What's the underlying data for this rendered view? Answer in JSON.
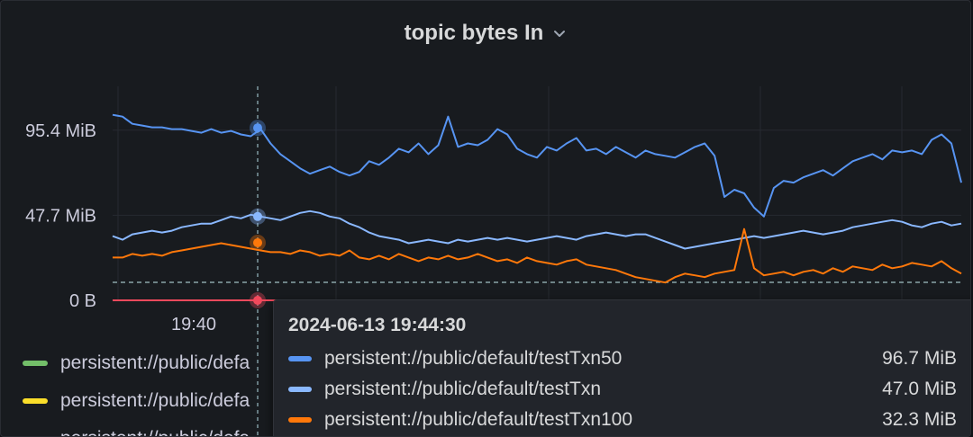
{
  "panel": {
    "title": "topic bytes In"
  },
  "chart_data": {
    "type": "line",
    "title": "topic bytes In",
    "y_ticks": [
      "95.4 MiB",
      "47.7 MiB",
      "0 B"
    ],
    "x_ticks": [
      "19:40"
    ],
    "ylim": [
      0,
      120
    ],
    "grid": true,
    "series": [
      {
        "name": "persistent://public/default/testTxn50",
        "color": "#5794f2",
        "values": [
          104,
          103,
          99,
          98,
          97,
          97,
          96,
          96,
          95,
          94,
          96,
          94,
          95,
          93,
          92,
          96,
          88,
          82,
          78,
          74,
          71,
          73,
          75,
          72,
          70,
          72,
          78,
          76,
          80,
          85,
          83,
          88,
          82,
          87,
          103,
          86,
          88,
          87,
          90,
          96,
          93,
          85,
          82,
          80,
          86,
          84,
          88,
          91,
          84,
          85,
          82,
          86,
          83,
          80,
          84,
          82,
          81,
          80,
          83,
          86,
          88,
          81,
          58,
          62,
          60,
          52,
          47,
          63,
          67,
          66,
          69,
          71,
          73,
          70,
          74,
          78,
          80,
          82,
          79,
          84,
          83,
          84,
          82,
          90,
          93,
          88,
          66
        ]
      },
      {
        "name": "persistent://public/default/testTxn",
        "color": "#8ab8ff",
        "values": [
          36,
          34,
          37,
          38,
          39,
          38,
          39,
          41,
          42,
          43,
          43,
          45,
          47,
          46,
          48,
          47,
          46,
          45,
          47,
          49,
          50,
          49,
          47,
          46,
          43,
          41,
          38,
          36,
          35,
          34,
          32,
          33,
          34,
          33,
          32,
          34,
          33,
          34,
          35,
          34,
          35,
          34,
          33,
          34,
          35,
          36,
          35,
          34,
          36,
          37,
          38,
          37,
          36,
          37,
          37,
          35,
          33,
          31,
          29,
          30,
          31,
          32,
          33,
          34,
          35,
          36,
          35,
          36,
          37,
          38,
          39,
          38,
          37,
          38,
          39,
          41,
          42,
          43,
          44,
          45,
          44,
          42,
          41,
          43,
          44,
          42,
          43
        ]
      },
      {
        "name": "persistent://public/default/testTxn100",
        "color": "#ff780a",
        "values": [
          24,
          24,
          26,
          25,
          26,
          25,
          27,
          28,
          29,
          30,
          31,
          32,
          31,
          30,
          29,
          28,
          27,
          27,
          26,
          28,
          27,
          25,
          26,
          25,
          28,
          24,
          23,
          25,
          23,
          26,
          24,
          22,
          24,
          23,
          25,
          23,
          24,
          26,
          24,
          22,
          23,
          21,
          24,
          22,
          21,
          20,
          22,
          23,
          20,
          19,
          18,
          17,
          15,
          13,
          12,
          11,
          10,
          13,
          15,
          14,
          13,
          15,
          16,
          17,
          40,
          18,
          14,
          15,
          16,
          14,
          16,
          17,
          15,
          18,
          16,
          19,
          18,
          17,
          20,
          18,
          19,
          21,
          20,
          19,
          22,
          18,
          15
        ]
      },
      {
        "name": "persistent://public/default/green",
        "color": "#73bf69",
        "values": []
      },
      {
        "name": "persistent://public/default/yellow",
        "color": "#fade2a",
        "values": []
      }
    ]
  },
  "legend": {
    "items": [
      {
        "label": "persistent://public/defa",
        "color": "#73bf69"
      },
      {
        "label": "persistent://public/defa",
        "color": "#fade2a"
      },
      {
        "label": "persistent://public/defa",
        "color": "#ff780a"
      }
    ]
  },
  "tooltip": {
    "time": "2024-06-13 19:44:30",
    "rows": [
      {
        "name": "persistent://public/default/testTxn50",
        "value": "96.7 MiB",
        "color": "#5794f2"
      },
      {
        "name": "persistent://public/default/testTxn",
        "value": "47.0 MiB",
        "color": "#8ab8ff"
      },
      {
        "name": "persistent://public/default/testTxn100",
        "value": "32.3 MiB",
        "color": "#ff780a"
      }
    ]
  }
}
